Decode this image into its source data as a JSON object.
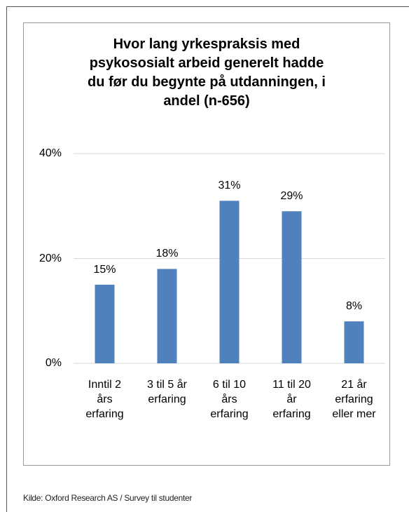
{
  "chart_data": {
    "type": "bar",
    "title": "Hvor lang yrkespraksis med\npsykososialt arbeid generelt hadde\ndu før du begynte på utdanningen,  i\nandel (n-656)",
    "categories": [
      "Inntil 2\nårs\nerfaring",
      "3 til 5 år\nerfaring",
      "6 til 10\nårs\nerfaring",
      "11 til 20\når\nerfaring",
      "21 år\nerfaring\neller mer"
    ],
    "values": [
      15,
      18,
      31,
      29,
      8
    ],
    "value_labels": [
      "15%",
      "18%",
      "31%",
      "29%",
      "8%"
    ],
    "color": "#4f81bd",
    "ylim": [
      0,
      40
    ],
    "yticks": [
      {
        "value": 0,
        "label": "0%"
      },
      {
        "value": 20,
        "label": "20%"
      },
      {
        "value": 40,
        "label": "40%"
      }
    ],
    "grid": true
  },
  "source": "Kilde: Oxford Research AS / Survey til studenter"
}
